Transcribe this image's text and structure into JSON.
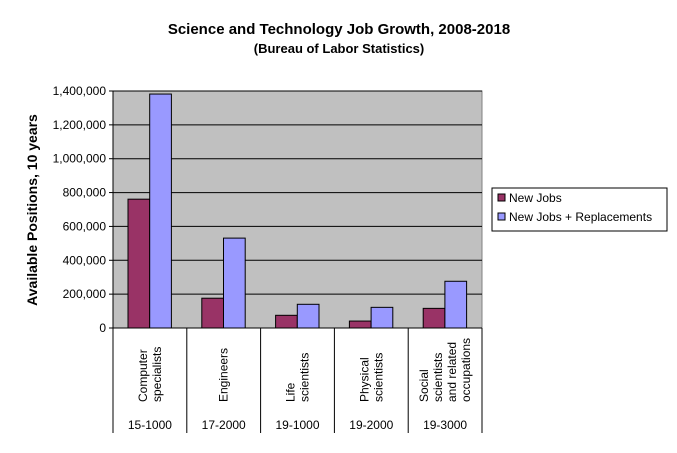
{
  "chart_data": {
    "type": "bar",
    "title": "Science and Technology Job Growth, 2008-2018",
    "subtitle": "(Bureau of Labor Statistics)",
    "xlabel": "",
    "ylabel": "Available Positions, 10 years",
    "ylim": [
      0,
      1400000
    ],
    "yticks": [
      "0",
      "200,000",
      "400,000",
      "600,000",
      "800,000",
      "1,000,000",
      "1,200,000",
      "1,400,000"
    ],
    "grid": true,
    "legend_placement": "right",
    "categories": [
      {
        "name": [
          "Computer",
          "specialists"
        ],
        "code": "15-1000"
      },
      {
        "name": [
          "Engineers"
        ],
        "code": "17-2000"
      },
      {
        "name": [
          "Life",
          "scientists"
        ],
        "code": "19-1000"
      },
      {
        "name": [
          "Physical",
          "scientists"
        ],
        "code": "19-2000"
      },
      {
        "name": [
          "Social",
          "scientists",
          "and related",
          "occupations"
        ],
        "code": "19-3000"
      }
    ],
    "series": [
      {
        "name": "New Jobs",
        "color": "#993366",
        "values": [
          761000,
          176000,
          75000,
          41000,
          116000
        ]
      },
      {
        "name": "New Jobs + Replacements",
        "color": "#9999FF",
        "values": [
          1382000,
          531000,
          140000,
          122000,
          276000
        ]
      }
    ],
    "plot_background": "#C0C0C0"
  }
}
